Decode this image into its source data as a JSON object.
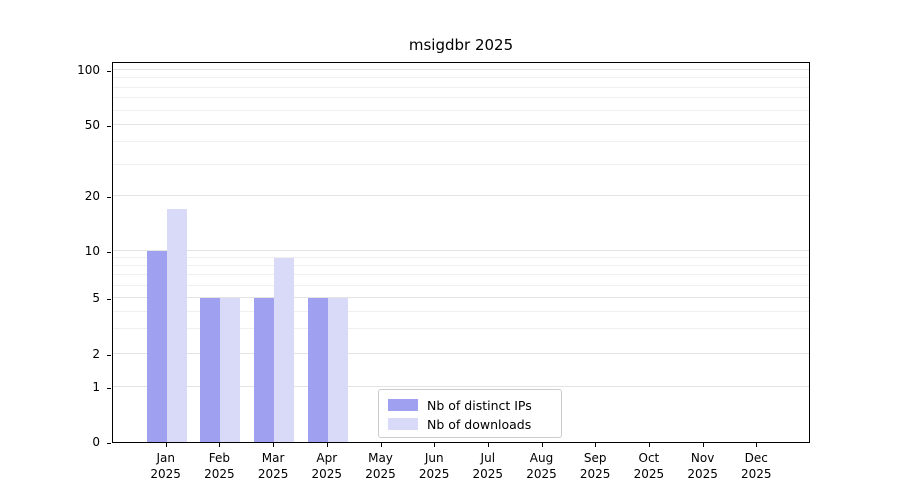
{
  "chart_data": {
    "type": "bar",
    "title": "msigdbr 2025",
    "year": "2025",
    "months": [
      "Jan",
      "Feb",
      "Mar",
      "Apr",
      "May",
      "Jun",
      "Jul",
      "Aug",
      "Sep",
      "Oct",
      "Nov",
      "Dec"
    ],
    "series": [
      {
        "name": "Nb of distinct IPs",
        "color": "#a0a0f0",
        "values": [
          10,
          5,
          5,
          5,
          0,
          0,
          0,
          0,
          0,
          0,
          0,
          0
        ]
      },
      {
        "name": "Nb of downloads",
        "color": "#d9d9f8",
        "values": [
          17,
          5,
          9,
          5,
          0,
          0,
          0,
          0,
          0,
          0,
          0,
          0
        ]
      }
    ],
    "xlabel": "",
    "ylabel": "",
    "yscale": "symlog",
    "yticks": [
      0,
      1,
      2,
      5,
      10,
      20,
      50,
      100
    ],
    "minor_yticks": [
      3,
      4,
      6,
      7,
      8,
      9,
      30,
      40,
      60,
      70,
      80,
      90
    ],
    "ylim": [
      0,
      115
    ],
    "grid": true,
    "legend_position": "lower center"
  }
}
